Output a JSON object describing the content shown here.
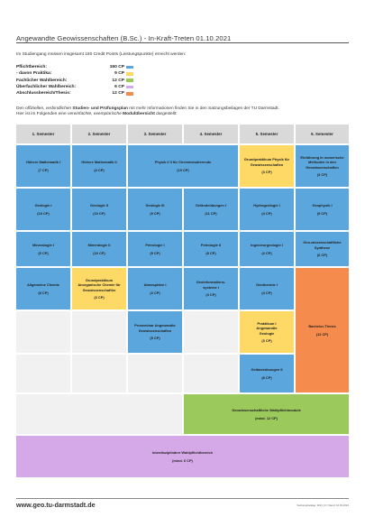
{
  "title": "Angewandte Geowissenschaften (B.Sc.) - In-Kraft-Treten 01.10.2021",
  "intro": "Im Studiengang müssen insgesamt 180 Credit Points (Leistungspunkte) erreicht werden:",
  "credits": [
    {
      "label": "Pflichtbereich:",
      "value": "150 CP",
      "color": "#5ba6dc"
    },
    {
      "label": "- davon Praktika:",
      "value": "9 CP",
      "color": "#ffd966"
    },
    {
      "label": "Fachlicher Wahlbereich:",
      "value": "12 CP",
      "color": "#9bc95c"
    },
    {
      "label": "Überfachlicher Wahlbereich:",
      "value": "6 CP",
      "color": "#d5a9e8"
    },
    {
      "label": "Abschlussbereich/Thesis:",
      "value": "12 CP",
      "color": "#f58c4d"
    }
  ],
  "para": {
    "p1": "Den ",
    "p2": "offiziellen, verbindlichen",
    "p3": " Studien- und Prüfungsplan",
    "p4": " mit mehr Informationen finden Sie in den Satzungsbeilagen der TU Darmstadt.",
    "p5": "Hier ist im Folgenden eine ",
    "p6": "vereinfachte, exemplarische",
    "p7": " Modulübersicht",
    "p8": " dargestellt:"
  },
  "semesters": [
    "1. Semester",
    "2. Semester",
    "3. Semester",
    "4. Semester",
    "5. Semester",
    "6. Semester"
  ],
  "modules": {
    "m1": {
      "name": "Höhere Mathematik I",
      "cp": "(7 CP)"
    },
    "m2": {
      "name": "Höhere Mathematik II",
      "cp": "(4 CP)"
    },
    "m3": {
      "name": "Physik I/ II für Chemiestudierende",
      "cp": "(10 CP)"
    },
    "m4": {
      "name": "Grundpraktikum Physik für Geowissenschaften",
      "cp": "(3 CP)"
    },
    "m5": {
      "name": "Einführung in numerische Methoden in den Geowissenschaften",
      "cp": "(3 CP)"
    },
    "m6": {
      "name": "Geologie I",
      "cp": "(10 CP)"
    },
    "m7": {
      "name": "Geologie II",
      "cp": "(10 CP)"
    },
    "m8": {
      "name": "Geologie III",
      "cp": "(9 CP)"
    },
    "m9": {
      "name": "Geländeübungen I",
      "cp": "(11 CP)"
    },
    "m10": {
      "name": "Hydrogeologie I",
      "cp": "(4 CP)"
    },
    "m11": {
      "name": "Geophysik I",
      "cp": "(5 CP)"
    },
    "m12": {
      "name": "Mineralogie I",
      "cp": "(5 CP)"
    },
    "m13": {
      "name": "Mineralogie II",
      "cp": "(10 CP)"
    },
    "m14": {
      "name": "Petrologie I",
      "cp": "(5 CP)"
    },
    "m15": {
      "name": "Petrologie II",
      "cp": "(8 CP)"
    },
    "m16": {
      "name": "Ingenieurgeologie I",
      "cp": "(4 CP)"
    },
    "m17": {
      "name": "Geo-wissenschaftliche Synthese",
      "cp": "(6 CP)"
    },
    "m18": {
      "name": "Allgemeine Chemie",
      "cp": "(8 CP)"
    },
    "m19": {
      "name": "Grundpraktikum Anorganische Chemie für Geowissenschaftler",
      "cp": "(3 CP)"
    },
    "m20": {
      "name": "Atmosphäre I",
      "cp": "(3 CP)"
    },
    "m21": {
      "name": "Geoinformations-systeme I",
      "cp": "(4 CP)"
    },
    "m22": {
      "name": "Geothermie I",
      "cp": "(4 CP)"
    },
    "m23": {
      "name": "Proseminar Angewandte Geowissenschaften",
      "cp": "(5 CP)"
    },
    "m24": {
      "name": "Praktikum I Angewandte Geologie",
      "cp": "(3 CP)"
    },
    "m25": {
      "name": "Bachelor-Thesis",
      "cp": "(12 CP)"
    },
    "m26": {
      "name": "Geländeübungen II",
      "cp": "(8 CP)"
    },
    "m27": {
      "name": "Geowissenschaftliche Wahlpflichtmodule",
      "cp": "(mind. 12 CP)"
    },
    "m28": {
      "name": "Interdisziplinärer Wahlpflichtbereich",
      "cp": "(mind. 6 CP)"
    }
  },
  "footer": {
    "url": "www.geo.tu-darmstadt.de",
    "meta": "Satzungsbeilage: 2021_III  |  Stand: 16.03.2021"
  }
}
